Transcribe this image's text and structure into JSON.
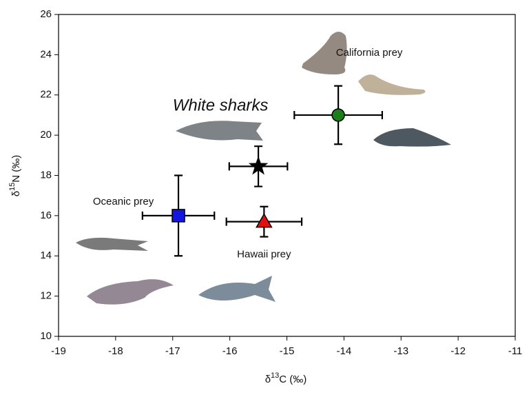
{
  "chart_data": {
    "type": "scatter",
    "x_label": {
      "symbol": "δ",
      "sup": "13",
      "rest": "C (‰)"
    },
    "y_label": {
      "symbol": "δ",
      "sup": "15",
      "rest": "N (‰)"
    },
    "xlim": [
      -19,
      -11
    ],
    "xticks": [
      -19,
      -18,
      -17,
      -16,
      -15,
      -14,
      -13,
      -12,
      -11
    ],
    "ylim": [
      10,
      26
    ],
    "yticks": [
      10,
      12,
      14,
      16,
      18,
      20,
      22,
      24,
      26
    ],
    "series": [
      {
        "name": "California prey",
        "marker": "circle",
        "color": "#1a7f1a",
        "x": -14.1,
        "y": 21.0,
        "xerr": 0.77,
        "yerr": 1.45
      },
      {
        "name": "White sharks",
        "marker": "star",
        "color": "#000000",
        "x": -15.5,
        "y": 18.45,
        "xerr": 0.51,
        "yerr": 1.0
      },
      {
        "name": "Oceanic prey",
        "marker": "square",
        "color": "#1515e0",
        "x": -16.9,
        "y": 16.0,
        "xerr": 0.63,
        "yerr": 2.0
      },
      {
        "name": "Hawaii prey",
        "marker": "triangle",
        "color": "#e01010",
        "x": -15.4,
        "y": 15.7,
        "xerr": 0.66,
        "yerr": 0.75
      }
    ]
  }
}
